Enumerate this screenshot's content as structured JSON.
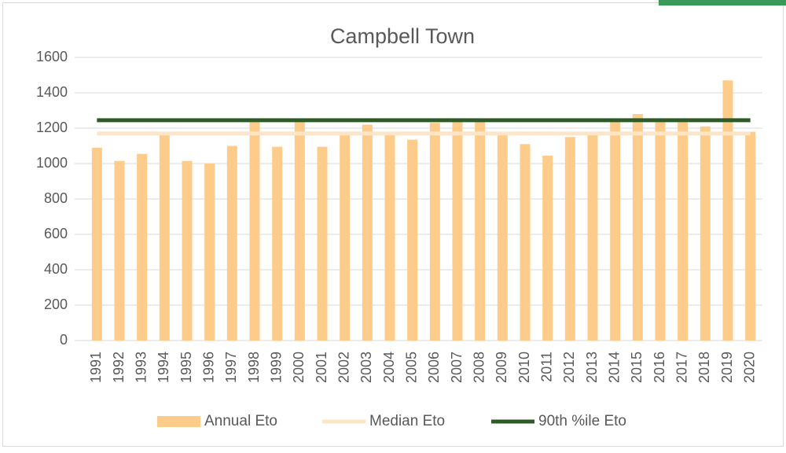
{
  "chart_data": {
    "type": "bar",
    "title": "Campbell Town",
    "categories": [
      "1991",
      "1992",
      "1993",
      "1994",
      "1995",
      "1996",
      "1997",
      "1998",
      "1999",
      "2000",
      "2001",
      "2002",
      "2003",
      "2004",
      "2005",
      "2006",
      "2007",
      "2008",
      "2009",
      "2010",
      "2011",
      "2012",
      "2013",
      "2014",
      "2015",
      "2016",
      "2017",
      "2018",
      "2019",
      "2020"
    ],
    "series": [
      {
        "name": "Annual Eto",
        "type": "bar",
        "color": "#fdcc8a",
        "values": [
          1090,
          1015,
          1055,
          1170,
          1015,
          1000,
          1100,
          1240,
          1095,
          1245,
          1095,
          1170,
          1220,
          1160,
          1135,
          1230,
          1240,
          1240,
          1165,
          1110,
          1045,
          1150,
          1165,
          1240,
          1280,
          1235,
          1235,
          1210,
          1470,
          1180
        ]
      },
      {
        "name": "Median Eto",
        "type": "line",
        "color": "#fde6c8",
        "values": [
          1170,
          1170,
          1170,
          1170,
          1170,
          1170,
          1170,
          1170,
          1170,
          1170,
          1170,
          1170,
          1170,
          1170,
          1170,
          1170,
          1170,
          1170,
          1170,
          1170,
          1170,
          1170,
          1170,
          1170,
          1170,
          1170,
          1170,
          1170,
          1170,
          1170
        ]
      },
      {
        "name": "90th %ile Eto",
        "type": "line",
        "color": "#2e5a27",
        "values": [
          1245,
          1245,
          1245,
          1245,
          1245,
          1245,
          1245,
          1245,
          1245,
          1245,
          1245,
          1245,
          1245,
          1245,
          1245,
          1245,
          1245,
          1245,
          1245,
          1245,
          1245,
          1245,
          1245,
          1245,
          1245,
          1245,
          1245,
          1245,
          1245,
          1245
        ]
      }
    ],
    "ylim": [
      0,
      1600
    ],
    "yticks": [
      0,
      200,
      400,
      600,
      800,
      1000,
      1200,
      1400,
      1600
    ],
    "grid": true,
    "legend": "bottom"
  }
}
